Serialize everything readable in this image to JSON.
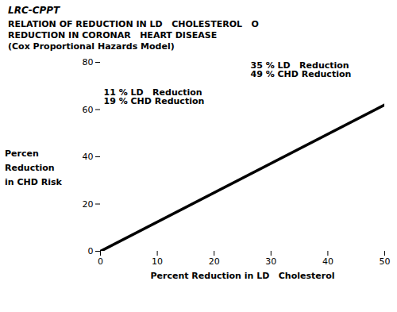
{
  "chart_data": {
    "type": "line",
    "title": "LRC-CPPT",
    "subtitle": [
      "RELATION OF REDUCTION IN LD   CHOLESTEROL   O",
      "REDUCTION IN CORONAR   HEART DISEASE",
      "(Cox Proportional Hazards Model)"
    ],
    "xlabel": "Percent Reduction in LD   Cholesterol",
    "ylabel": [
      "Percen",
      "Reduction",
      "in CHD Risk"
    ],
    "x": [
      0,
      50
    ],
    "values": [
      0,
      62
    ],
    "color": "#000000",
    "xlim": [
      0,
      50
    ],
    "ylim": [
      0,
      80
    ],
    "xticks": [
      0,
      10,
      20,
      30,
      40,
      50
    ],
    "yticks": [
      0,
      20,
      40,
      60,
      80
    ],
    "grid": false,
    "annotations": [
      [
        "35 % LD   Reduction",
        "49 % CHD Reduction"
      ],
      [
        "11 % LD   Reduction",
        "19 % CHD Reduction"
      ]
    ]
  }
}
